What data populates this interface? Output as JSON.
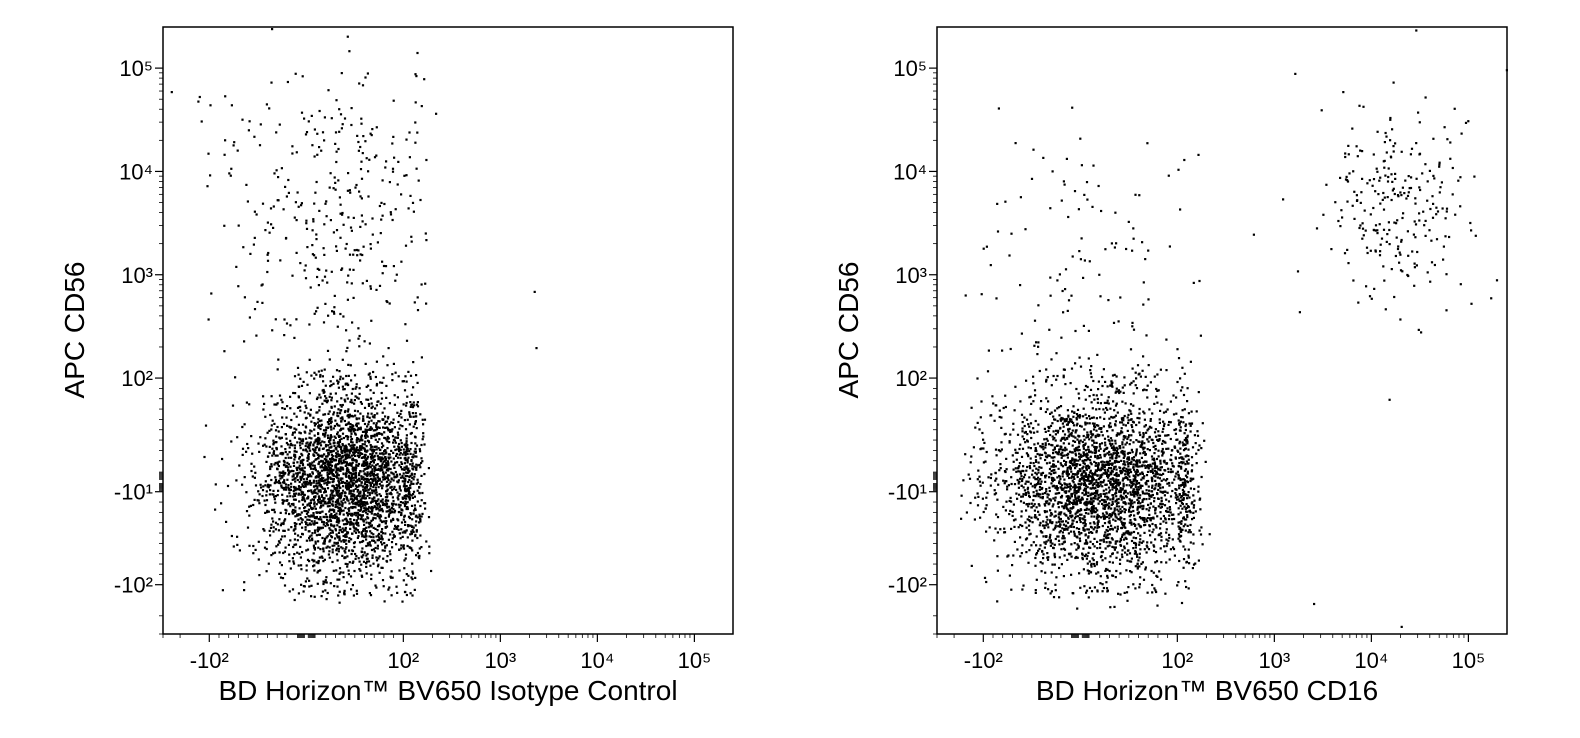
{
  "chart_data": [
    {
      "type": "scatter",
      "title": "",
      "xlabel": "BD Horizon™ BV650 Isotype Control",
      "ylabel": "APC CD56",
      "x_scale": "biexponential",
      "y_scale": "biexponential",
      "xlim": [
        -300,
        250000
      ],
      "ylim": [
        -300,
        250000
      ],
      "grid": false,
      "legend": "none",
      "x_ticks": [
        {
          "value": -100,
          "label": "-10²"
        },
        {
          "value": 100,
          "label": "10²"
        },
        {
          "value": 1000,
          "label": "10³"
        },
        {
          "value": 10000,
          "label": "10⁴"
        },
        {
          "value": 100000,
          "label": "10⁵"
        }
      ],
      "y_ticks": [
        {
          "value": 100000,
          "label": "10⁵"
        },
        {
          "value": 10000,
          "label": "10⁴"
        },
        {
          "value": 1000,
          "label": "10³"
        },
        {
          "value": 100,
          "label": "10²"
        },
        {
          "value": -10,
          "label": "-10¹"
        },
        {
          "value": -100,
          "label": "-10²"
        }
      ],
      "populations": [
        {
          "x_center": 40,
          "y_center": 0,
          "x_spread": 45,
          "y_spread": 45,
          "count": 3200
        },
        {
          "x_center": 30,
          "y_center": 3000,
          "x_spread": 60,
          "y_spread": 0.9,
          "count": 420
        }
      ],
      "outliers": [
        [
          2200,
          700
        ],
        [
          2300,
          200
        ],
        [
          -250,
          60000
        ],
        [
          160,
          80000
        ]
      ]
    },
    {
      "type": "scatter",
      "title": "",
      "xlabel": "BD Horizon™ BV650 CD16",
      "ylabel": "APC CD56",
      "x_scale": "biexponential",
      "y_scale": "biexponential",
      "xlim": [
        -300,
        250000
      ],
      "ylim": [
        -300,
        250000
      ],
      "grid": false,
      "legend": "none",
      "x_ticks": [
        {
          "value": -100,
          "label": "-10²"
        },
        {
          "value": 100,
          "label": "10²"
        },
        {
          "value": 1000,
          "label": "10³"
        },
        {
          "value": 10000,
          "label": "10⁴"
        },
        {
          "value": 100000,
          "label": "10⁵"
        }
      ],
      "y_ticks": [
        {
          "value": 100000,
          "label": "10⁵"
        },
        {
          "value": 10000,
          "label": "10⁴"
        },
        {
          "value": 1000,
          "label": "10³"
        },
        {
          "value": 100,
          "label": "10²"
        },
        {
          "value": -10,
          "label": "-10¹"
        },
        {
          "value": -100,
          "label": "-10²"
        }
      ],
      "populations": [
        {
          "x_center": 20,
          "y_center": 0,
          "x_spread": 55,
          "y_spread": 45,
          "count": 3000
        },
        {
          "x_center": 18000,
          "y_center": 5000,
          "x_spread": 0.35,
          "y_spread": 0.45,
          "count": 260
        },
        {
          "x_center": 10,
          "y_center": 600,
          "x_spread": 60,
          "y_spread": 0.9,
          "count": 150
        }
      ],
      "outliers": [
        [
          1600,
          90000
        ],
        [
          5000,
          60000
        ],
        [
          3000,
          40000
        ],
        [
          1200,
          5500
        ],
        [
          600,
          2500
        ],
        [
          15000,
          80
        ],
        [
          30000,
          300
        ],
        [
          2500,
          -150
        ],
        [
          20000,
          -250
        ]
      ]
    }
  ]
}
